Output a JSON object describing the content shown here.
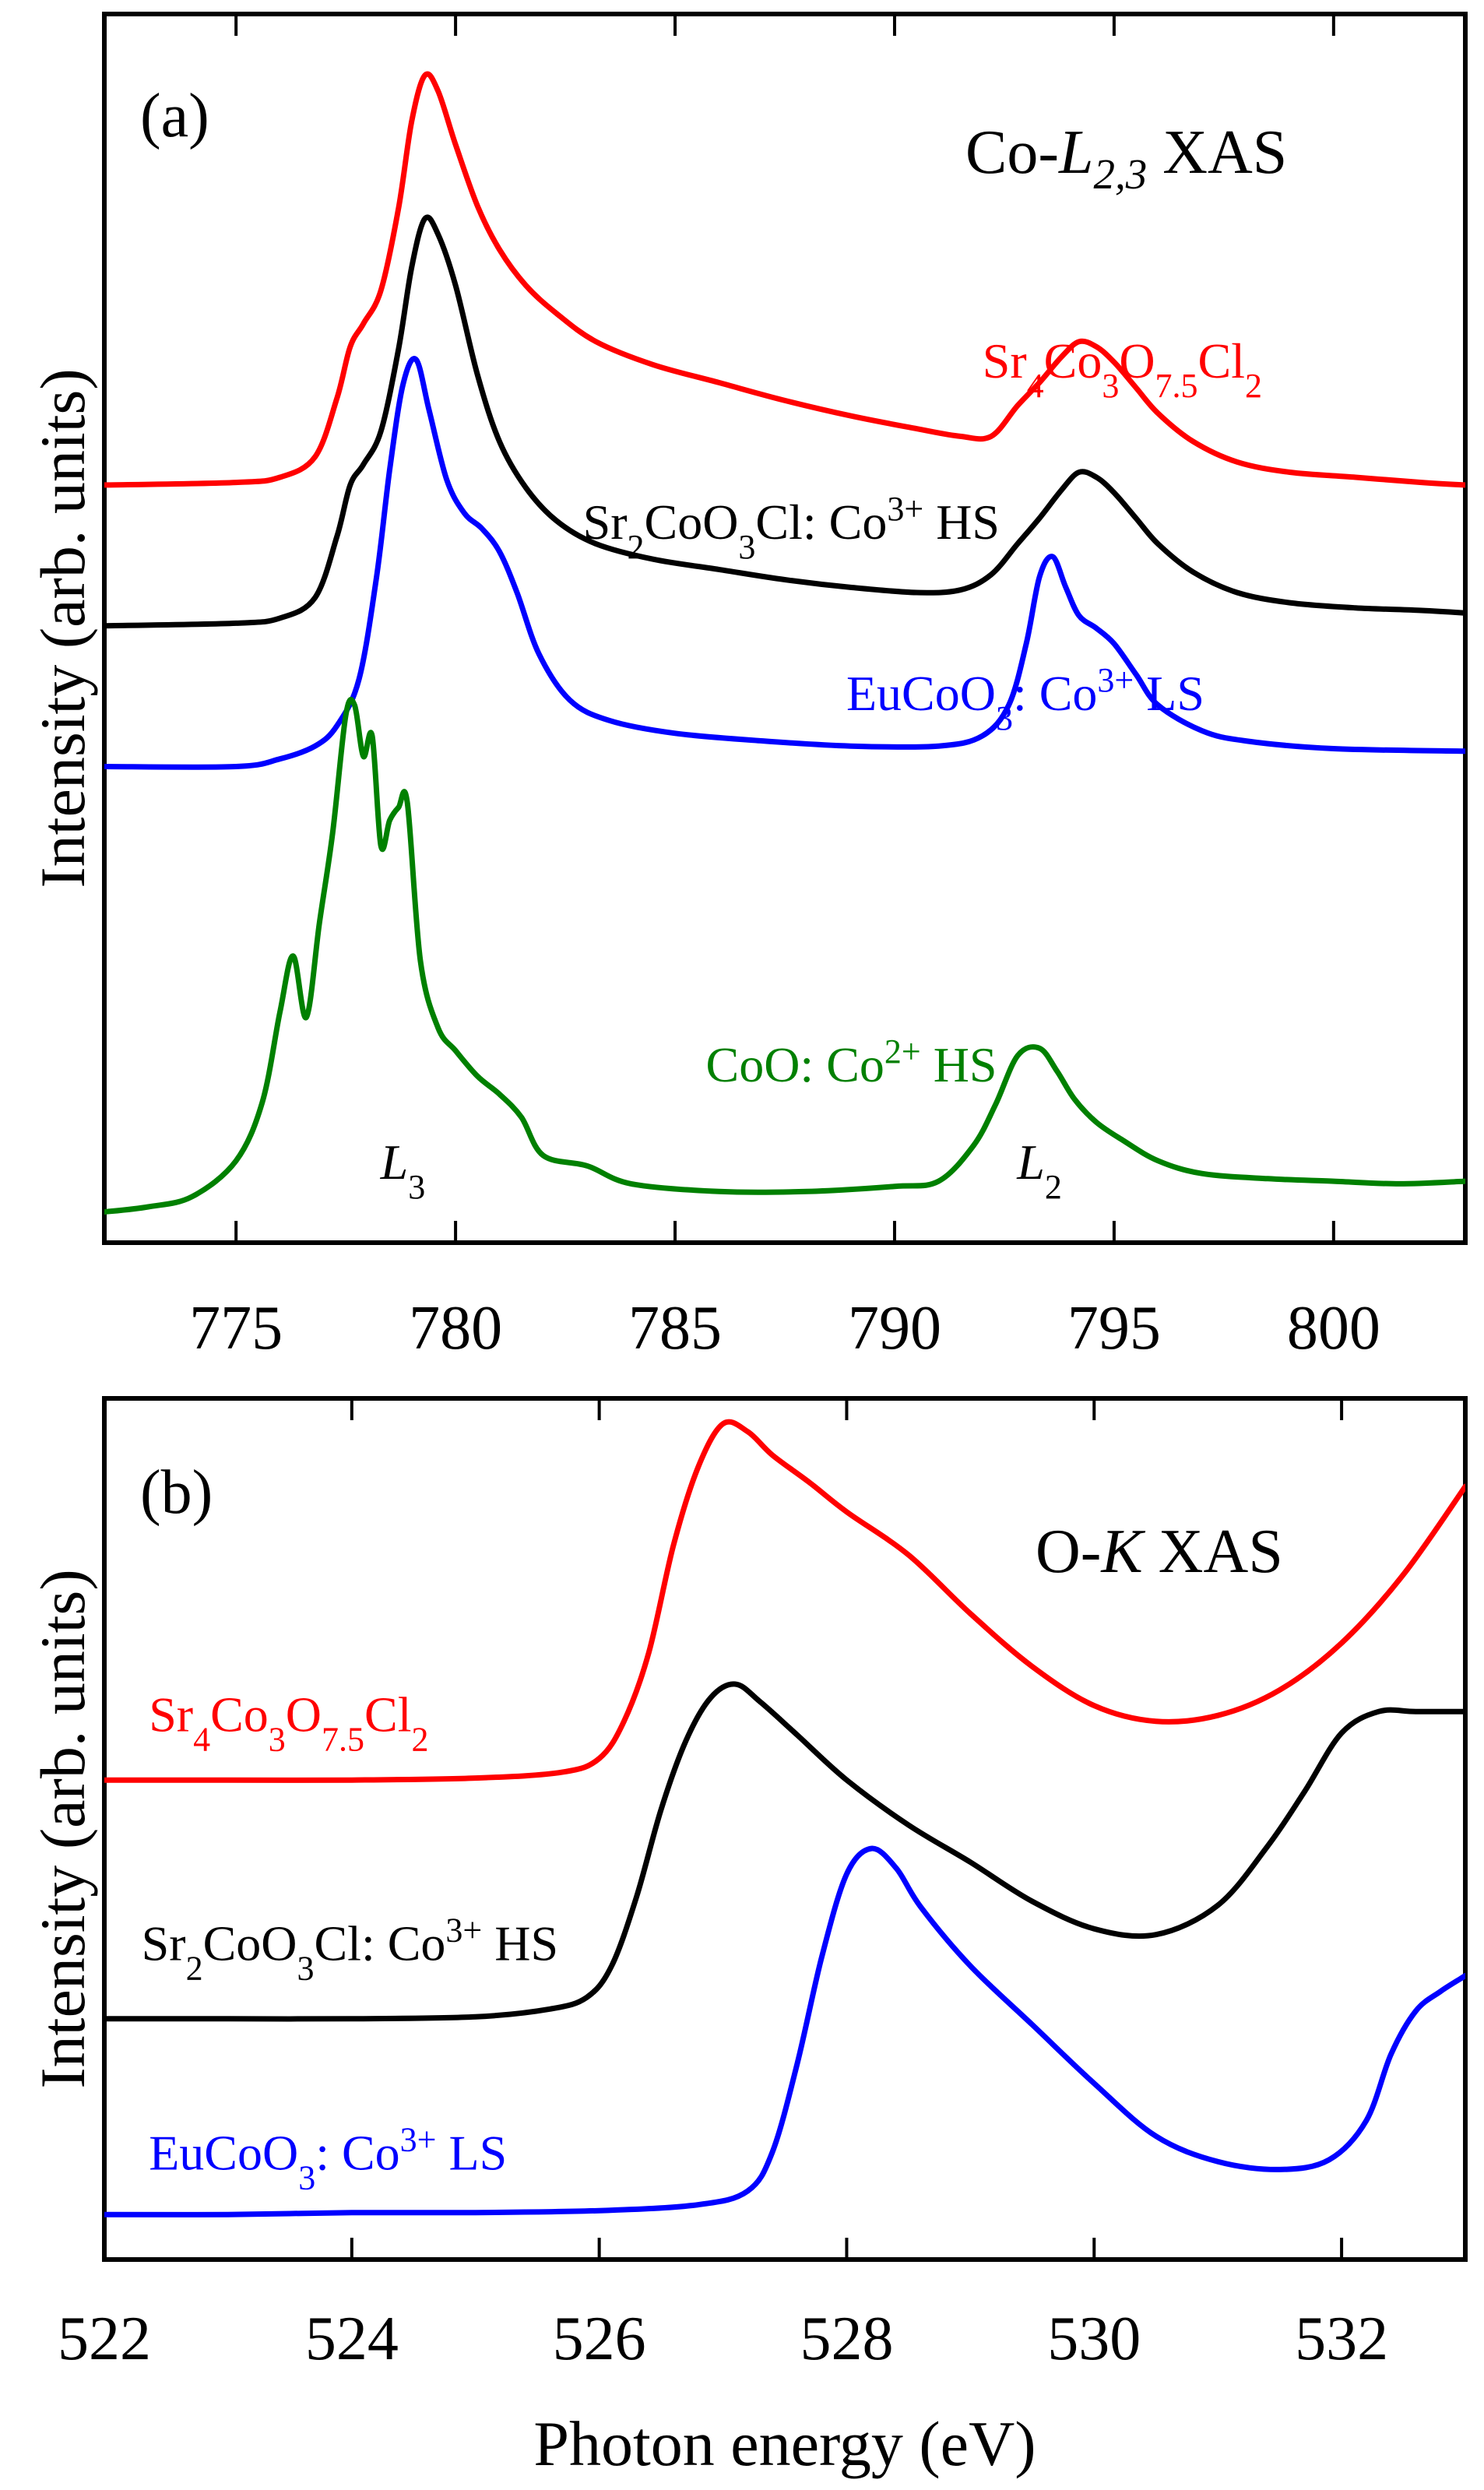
{
  "chart_data": [
    {
      "type": "line",
      "panel_label": "(a)",
      "title": "Co-L2,3 XAS",
      "title_parts": {
        "prefix": "Co-",
        "edge": "L",
        "sub": "2,3",
        "suffix": " XAS"
      },
      "xlabel": "",
      "ylabel": "Intensity (arb. units)",
      "xlim": [
        772,
        803
      ],
      "ylim": [
        -0.1,
        4.7
      ],
      "xticks": [
        775,
        780,
        785,
        790,
        795,
        800
      ],
      "xtick_labels": [
        "775",
        "780",
        "785",
        "790",
        "795",
        "800"
      ],
      "annotations": [
        {
          "name": "L3",
          "base": "L",
          "sub": "3",
          "x": 778.8,
          "y": 0.15
        },
        {
          "name": "L2",
          "base": "L",
          "sub": "2",
          "x": 793.3,
          "y": 0.15
        }
      ],
      "series": [
        {
          "name": "Sr4Co3O7.5Cl2",
          "color": "#ff0000",
          "label_parts": [
            {
              "t": "Sr",
              "s": "n"
            },
            {
              "t": "4",
              "s": "sub"
            },
            {
              "t": "Co",
              "s": "n"
            },
            {
              "t": "3",
              "s": "sub"
            },
            {
              "t": "O",
              "s": "n"
            },
            {
              "t": "7.5",
              "s": "sub"
            },
            {
              "t": "Cl",
              "s": "n"
            },
            {
              "t": "2",
              "s": "sub"
            }
          ],
          "label_pos": {
            "x": 792.0,
            "y": 3.28
          },
          "x": [
            772.0,
            775.0,
            776.0,
            776.8,
            777.3,
            777.6,
            777.9,
            778.3,
            778.7,
            779.0,
            779.3,
            779.6,
            780.0,
            780.5,
            781.0,
            781.6,
            782.3,
            783.2,
            784.5,
            786.0,
            787.5,
            789.0,
            790.5,
            791.5,
            792.2,
            792.8,
            793.3,
            793.8,
            794.2,
            794.6,
            795.0,
            795.5,
            796.0,
            796.8,
            797.8,
            799.0,
            800.5,
            802.0,
            803.0
          ],
          "y": [
            2.86,
            2.87,
            2.89,
            2.97,
            3.2,
            3.4,
            3.49,
            3.62,
            3.94,
            4.28,
            4.46,
            4.4,
            4.19,
            3.95,
            3.78,
            3.64,
            3.53,
            3.42,
            3.33,
            3.26,
            3.19,
            3.13,
            3.08,
            3.05,
            3.05,
            3.17,
            3.26,
            3.36,
            3.42,
            3.4,
            3.34,
            3.24,
            3.14,
            3.03,
            2.95,
            2.91,
            2.89,
            2.87,
            2.86
          ]
        },
        {
          "name": "Sr2CoO3Cl: Co3+ HS",
          "color": "#000000",
          "label_parts": [
            {
              "t": "Sr",
              "s": "n"
            },
            {
              "t": "2",
              "s": "sub"
            },
            {
              "t": "CoO",
              "s": "n"
            },
            {
              "t": "3",
              "s": "sub"
            },
            {
              "t": "Cl: Co",
              "s": "n"
            },
            {
              "t": "3+",
              "s": "sup"
            },
            {
              "t": " HS",
              "s": "n"
            }
          ],
          "label_pos": {
            "x": 782.9,
            "y": 2.65
          },
          "x": [
            772.0,
            775.0,
            776.0,
            776.8,
            777.3,
            777.6,
            777.9,
            778.3,
            778.7,
            779.0,
            779.3,
            779.6,
            780.0,
            780.5,
            781.0,
            781.6,
            782.3,
            783.2,
            784.5,
            786.0,
            787.5,
            789.0,
            790.5,
            791.5,
            792.2,
            792.8,
            793.3,
            793.8,
            794.2,
            794.6,
            795.0,
            795.5,
            796.0,
            796.8,
            797.8,
            799.0,
            800.5,
            802.0,
            803.0
          ],
          "y": [
            2.31,
            2.32,
            2.34,
            2.42,
            2.66,
            2.86,
            2.94,
            3.07,
            3.39,
            3.71,
            3.9,
            3.84,
            3.64,
            3.29,
            3.03,
            2.85,
            2.72,
            2.63,
            2.57,
            2.53,
            2.49,
            2.46,
            2.44,
            2.45,
            2.51,
            2.63,
            2.73,
            2.84,
            2.91,
            2.89,
            2.83,
            2.73,
            2.63,
            2.52,
            2.44,
            2.4,
            2.38,
            2.37,
            2.36
          ]
        },
        {
          "name": "EuCoO3: Co3+ LS",
          "color": "#0000ff",
          "label_parts": [
            {
              "t": "EuCoO",
              "s": "n"
            },
            {
              "t": "3",
              "s": "sub"
            },
            {
              "t": ": Co",
              "s": "n"
            },
            {
              "t": "3+",
              "s": "sup"
            },
            {
              "t": " LS",
              "s": "n"
            }
          ],
          "label_pos": {
            "x": 788.9,
            "y": 1.98
          },
          "x": [
            772.0,
            775.0,
            776.0,
            776.8,
            777.3,
            777.8,
            778.2,
            778.5,
            778.8,
            779.1,
            779.4,
            779.8,
            780.2,
            780.6,
            781.0,
            781.4,
            781.9,
            782.6,
            783.5,
            785.0,
            787.0,
            789.0,
            791.0,
            792.0,
            792.6,
            793.0,
            793.3,
            793.6,
            793.9,
            794.2,
            794.6,
            795.0,
            795.5,
            796.0,
            797.0,
            798.0,
            800.0,
            803.0
          ],
          "y": [
            1.76,
            1.76,
            1.79,
            1.84,
            1.92,
            2.1,
            2.5,
            2.92,
            3.25,
            3.35,
            3.15,
            2.88,
            2.75,
            2.69,
            2.6,
            2.44,
            2.2,
            2.02,
            1.94,
            1.89,
            1.86,
            1.84,
            1.84,
            1.88,
            2.0,
            2.24,
            2.5,
            2.58,
            2.46,
            2.35,
            2.3,
            2.24,
            2.12,
            2.0,
            1.9,
            1.86,
            1.83,
            1.82
          ]
        },
        {
          "name": "CoO: Co2+ HS",
          "color": "#008000",
          "label_parts": [
            {
              "t": "CoO: Co",
              "s": "n"
            },
            {
              "t": "2+",
              "s": "sup"
            },
            {
              "t": " HS",
              "s": "n"
            }
          ],
          "label_pos": {
            "x": 785.7,
            "y": 0.53
          },
          "x": [
            772.0,
            773.0,
            774.0,
            775.0,
            775.6,
            776.0,
            776.3,
            776.6,
            776.9,
            777.2,
            777.5,
            777.7,
            777.9,
            778.1,
            778.3,
            778.5,
            778.7,
            778.9,
            779.2,
            779.6,
            780.0,
            780.5,
            781.0,
            781.5,
            782.0,
            783.0,
            784.0,
            786.0,
            788.0,
            790.0,
            791.0,
            791.8,
            792.3,
            792.8,
            793.3,
            793.7,
            794.1,
            794.6,
            795.2,
            796.0,
            797.0,
            798.5,
            800.0,
            801.5,
            803.0
          ],
          "y": [
            0.02,
            0.04,
            0.08,
            0.22,
            0.45,
            0.8,
            1.02,
            0.78,
            1.15,
            1.5,
            1.96,
            2.0,
            1.8,
            1.88,
            1.45,
            1.55,
            1.6,
            1.62,
            1.0,
            0.74,
            0.65,
            0.55,
            0.48,
            0.39,
            0.24,
            0.2,
            0.13,
            0.1,
            0.1,
            0.12,
            0.14,
            0.28,
            0.44,
            0.63,
            0.66,
            0.57,
            0.46,
            0.37,
            0.3,
            0.22,
            0.17,
            0.15,
            0.14,
            0.13,
            0.14
          ]
        }
      ]
    },
    {
      "type": "line",
      "panel_label": "(b)",
      "title": "O-K XAS",
      "title_parts": {
        "prefix": "O-",
        "edge": "K",
        "sub": "",
        "suffix": " XAS"
      },
      "xlabel": "Photon energy (eV)",
      "ylabel": "Intensity (arb. units)",
      "xlim": [
        522,
        533
      ],
      "ylim": [
        -0.25,
        4.15
      ],
      "xticks": [
        522,
        524,
        526,
        528,
        530,
        532
      ],
      "xtick_labels": [
        "522",
        "524",
        "526",
        "528",
        "530",
        "532"
      ],
      "annotations": [],
      "series": [
        {
          "name": "Sr4Co3O7.5Cl2",
          "color": "#ff0000",
          "label_parts": [
            {
              "t": "Sr",
              "s": "n"
            },
            {
              "t": "4",
              "s": "sub"
            },
            {
              "t": "Co",
              "s": "n"
            },
            {
              "t": "3",
              "s": "sub"
            },
            {
              "t": "O",
              "s": "n"
            },
            {
              "t": "7.5",
              "s": "sub"
            },
            {
              "t": "Cl",
              "s": "n"
            },
            {
              "t": "2",
              "s": "sub"
            }
          ],
          "label_pos": {
            "x": 522.36,
            "y": 2.45
          },
          "x": [
            522.0,
            523.0,
            524.0,
            525.0,
            525.7,
            526.0,
            526.2,
            526.4,
            526.6,
            526.8,
            527.0,
            527.2,
            527.4,
            527.7,
            528.0,
            528.5,
            529.0,
            529.5,
            530.0,
            530.5,
            531.0,
            531.5,
            532.0,
            532.5,
            533.0
          ],
          "y": [
            2.2,
            2.2,
            2.2,
            2.21,
            2.24,
            2.31,
            2.5,
            2.85,
            3.4,
            3.8,
            4.02,
            3.98,
            3.86,
            3.72,
            3.57,
            3.35,
            3.05,
            2.78,
            2.58,
            2.5,
            2.53,
            2.66,
            2.9,
            3.25,
            3.7
          ]
        },
        {
          "name": "Sr2CoO3Cl: Co3+ HS",
          "color": "#000000",
          "label_parts": [
            {
              "t": "Sr",
              "s": "n"
            },
            {
              "t": "2",
              "s": "sub"
            },
            {
              "t": "CoO",
              "s": "n"
            },
            {
              "t": "3",
              "s": "sub"
            },
            {
              "t": "Cl: Co",
              "s": "n"
            },
            {
              "t": "3+",
              "s": "sup"
            },
            {
              "t": " HS",
              "s": "n"
            }
          ],
          "label_pos": {
            "x": 522.3,
            "y": 1.28
          },
          "x": [
            522.0,
            523.0,
            524.0,
            525.0,
            525.6,
            525.9,
            526.1,
            526.3,
            526.5,
            526.7,
            526.9,
            527.1,
            527.3,
            527.6,
            528.0,
            528.5,
            529.0,
            529.5,
            530.0,
            530.5,
            531.0,
            531.4,
            531.7,
            532.0,
            532.3,
            532.6,
            533.0
          ],
          "y": [
            0.98,
            0.98,
            0.98,
            0.99,
            1.03,
            1.09,
            1.25,
            1.6,
            2.05,
            2.4,
            2.62,
            2.69,
            2.6,
            2.43,
            2.2,
            1.97,
            1.78,
            1.58,
            1.44,
            1.41,
            1.56,
            1.86,
            2.14,
            2.44,
            2.55,
            2.55,
            2.55
          ]
        },
        {
          "name": "EuCoO3: Co3+ LS",
          "color": "#0000ff",
          "label_parts": [
            {
              "t": "EuCoO",
              "s": "n"
            },
            {
              "t": "3",
              "s": "sub"
            },
            {
              "t": ": Co",
              "s": "n"
            },
            {
              "t": "3+",
              "s": "sup"
            },
            {
              "t": " LS",
              "s": "n"
            }
          ],
          "label_pos": {
            "x": 522.36,
            "y": 0.21
          },
          "x": [
            522.0,
            523.0,
            524.0,
            525.0,
            526.0,
            526.8,
            527.2,
            527.4,
            527.6,
            527.8,
            528.0,
            528.2,
            528.4,
            528.6,
            529.0,
            529.5,
            530.0,
            530.5,
            531.0,
            531.5,
            531.9,
            532.2,
            532.4,
            532.6,
            532.8,
            533.0
          ],
          "y": [
            -0.02,
            -0.02,
            -0.01,
            -0.01,
            0.0,
            0.03,
            0.1,
            0.3,
            0.75,
            1.3,
            1.72,
            1.85,
            1.75,
            1.55,
            1.25,
            0.95,
            0.65,
            0.38,
            0.25,
            0.21,
            0.26,
            0.46,
            0.8,
            1.02,
            1.12,
            1.2
          ]
        }
      ]
    }
  ]
}
